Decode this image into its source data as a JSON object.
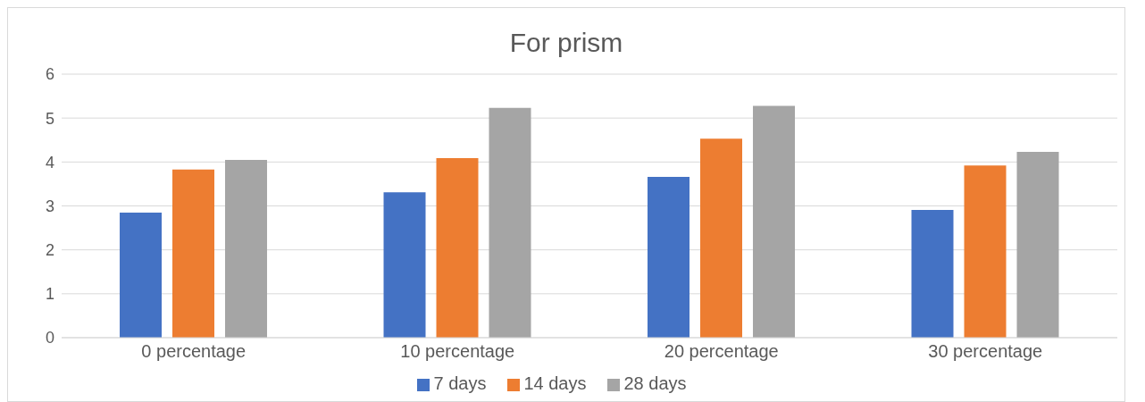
{
  "chart_data": {
    "type": "bar",
    "title": "For prism",
    "categories": [
      "0 percentage",
      "10 percentage",
      "20 percentage",
      "30 percentage"
    ],
    "series": [
      {
        "name": "7 days",
        "color": "#4472c4",
        "values": [
          2.85,
          3.31,
          3.66,
          2.91
        ]
      },
      {
        "name": "14 days",
        "color": "#ed7d31",
        "values": [
          3.83,
          4.09,
          4.53,
          3.92
        ]
      },
      {
        "name": "28 days",
        "color": "#a5a5a5",
        "values": [
          4.05,
          5.23,
          5.28,
          4.23
        ]
      }
    ],
    "ylim": [
      0,
      6
    ],
    "yticks": [
      0,
      1,
      2,
      3,
      4,
      5,
      6
    ],
    "grid": "y",
    "legend": "bottom"
  }
}
